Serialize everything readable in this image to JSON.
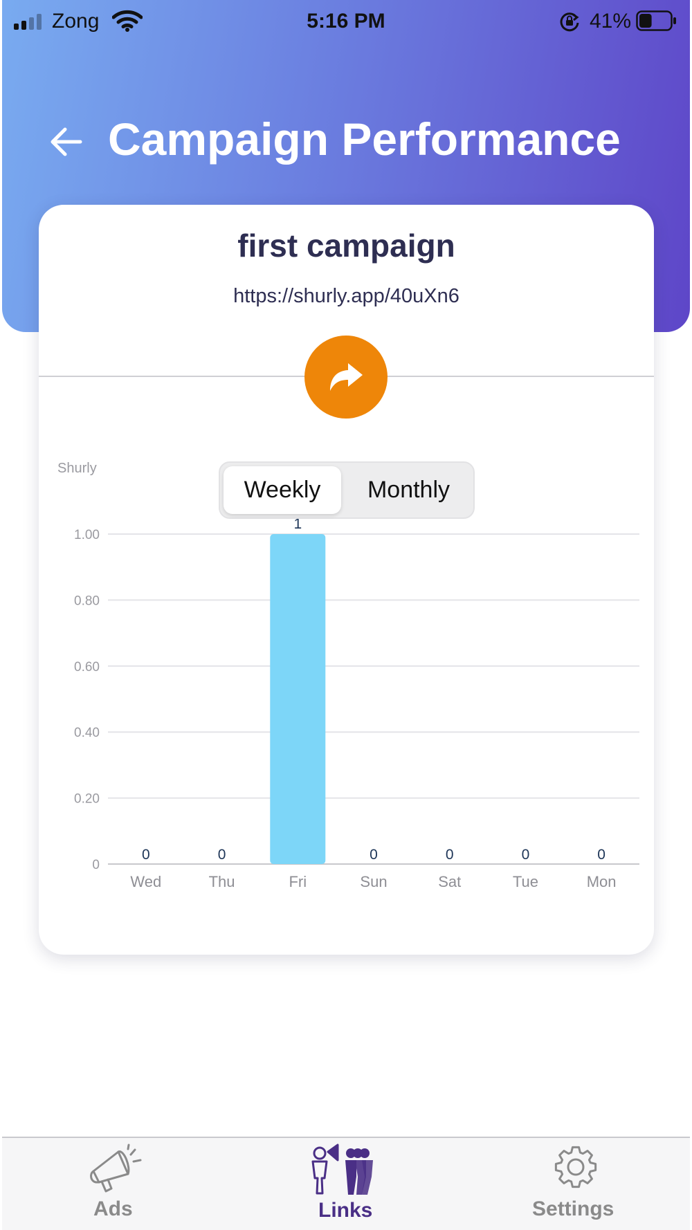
{
  "status_bar": {
    "carrier": "Zong",
    "time": "5:16 PM",
    "battery_percent": "41%",
    "battery_level": 0.41,
    "signal_bars": 2,
    "icons": [
      "signal-icon",
      "wifi-icon",
      "orientation-lock-icon",
      "battery-icon"
    ]
  },
  "header": {
    "title": "Campaign Performance",
    "back_icon": "back-arrow-icon"
  },
  "campaign": {
    "name": "first campaign",
    "url": "https://shurly.app/40uXn6",
    "share_icon": "share-arrow-icon"
  },
  "period_toggle": {
    "options": [
      "Weekly",
      "Monthly"
    ],
    "selected": "Weekly"
  },
  "colors": {
    "header_gradient_start": "#79abf0",
    "header_gradient_end": "#5e46c8",
    "share_button": "#ee8609",
    "bar": "#7dd6f8",
    "tab_active": "#4a2f86",
    "tab_inactive": "#8a8a8a"
  },
  "chart_data": {
    "type": "bar",
    "ylabel": "Shurly",
    "categories": [
      "Wed",
      "Thu",
      "Fri",
      "Sun",
      "Sat",
      "Tue",
      "Mon"
    ],
    "values": [
      0,
      0,
      1,
      0,
      0,
      0,
      0
    ],
    "data_labels": [
      "0",
      "0",
      "1",
      "0",
      "0",
      "0",
      "0"
    ],
    "yticks": [
      "0",
      "0.20",
      "0.40",
      "0.60",
      "0.80",
      "1.00"
    ],
    "ylim": [
      0,
      1
    ],
    "grid": true,
    "legend": "none"
  },
  "tab_bar": {
    "items": [
      {
        "label": "Ads",
        "icon": "megaphone-icon",
        "active": false
      },
      {
        "label": "Links",
        "icon": "people-megaphone-icon",
        "active": true
      },
      {
        "label": "Settings",
        "icon": "gear-icon",
        "active": false
      }
    ]
  }
}
